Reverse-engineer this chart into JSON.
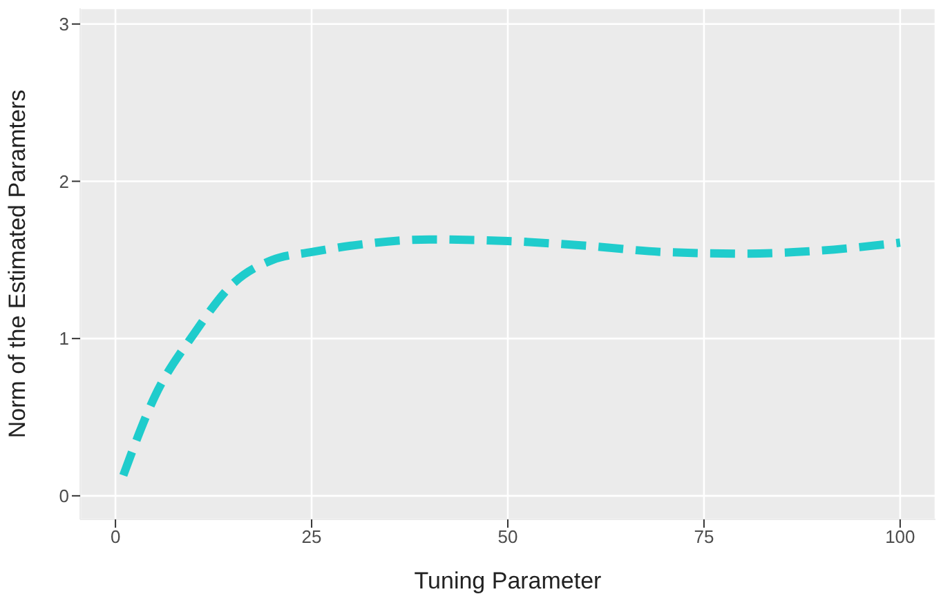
{
  "chart_data": {
    "type": "line",
    "xlabel": "Tuning Parameter",
    "ylabel": "Norm of the Estimated Paramters",
    "x": [
      1,
      5,
      10,
      15,
      20,
      25,
      30,
      40,
      50,
      60,
      70,
      80,
      90,
      100
    ],
    "series": [
      {
        "color": "#1fcccc",
        "values": [
          0.13,
          0.63,
          1.03,
          1.35,
          1.5,
          1.55,
          1.59,
          1.63,
          1.62,
          1.59,
          1.55,
          1.54,
          1.56,
          1.61
        ]
      }
    ],
    "xlim": [
      -4.5,
      104.5
    ],
    "xticks": [
      0,
      25,
      50,
      75,
      100
    ],
    "ylim": [
      -0.15,
      3.1
    ],
    "yticks": [
      0,
      1,
      2,
      3
    ],
    "grid": true,
    "line_style": "dashed",
    "marker": "none"
  }
}
